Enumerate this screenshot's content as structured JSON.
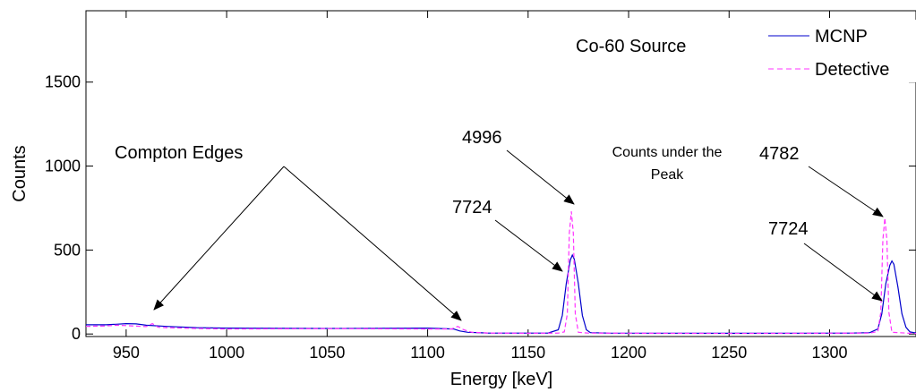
{
  "chart_data": {
    "type": "line",
    "title": "Co-60 Source",
    "xlabel": "Energy [keV]",
    "ylabel": "Counts",
    "xlim": [
      930,
      1343
    ],
    "ylim": [
      -15,
      1925
    ],
    "xticks": [
      950,
      1000,
      1050,
      1100,
      1150,
      1200,
      1250,
      1300
    ],
    "yticks": [
      0,
      500,
      1000,
      1500
    ],
    "grid": false,
    "legend_position": "top-right",
    "series": [
      {
        "name": "MCNP",
        "style": "solid",
        "color": "#0000cc",
        "x": [
          930,
          940,
          945,
          950,
          955,
          960,
          970,
          985,
          1000,
          1050,
          1100,
          1113,
          1116,
          1120,
          1130,
          1150,
          1160,
          1165,
          1167,
          1169,
          1171,
          1172,
          1173,
          1175,
          1177,
          1179,
          1181,
          1190,
          1250,
          1310,
          1320,
          1324,
          1326,
          1328,
          1330,
          1331,
          1332,
          1334,
          1336,
          1338,
          1340,
          1343
        ],
        "y": [
          55,
          55,
          58,
          62,
          60,
          52,
          45,
          38,
          35,
          33,
          35,
          30,
          18,
          10,
          6,
          5,
          6,
          25,
          110,
          300,
          440,
          470,
          445,
          300,
          110,
          25,
          8,
          5,
          4,
          5,
          8,
          30,
          120,
          300,
          410,
          435,
          415,
          280,
          120,
          40,
          12,
          6
        ]
      },
      {
        "name": "Detective",
        "style": "dashed",
        "color": "#ff33ff",
        "x": [
          930,
          940,
          945,
          950,
          955,
          960,
          963,
          966,
          970,
          985,
          1000,
          1050,
          1100,
          1112,
          1115,
          1118,
          1122,
          1130,
          1150,
          1165,
          1168,
          1169.5,
          1170.5,
          1171.5,
          1172.5,
          1173.5,
          1175,
          1180,
          1250,
          1320,
          1324,
          1325.5,
          1326.5,
          1327.5,
          1328.5,
          1329.5,
          1331,
          1340,
          1343
        ],
        "y": [
          45,
          48,
          52,
          50,
          47,
          44,
          62,
          40,
          38,
          33,
          30,
          32,
          30,
          30,
          45,
          25,
          10,
          6,
          4,
          5,
          12,
          120,
          600,
          730,
          600,
          120,
          10,
          5,
          3,
          5,
          15,
          130,
          560,
          690,
          560,
          130,
          10,
          4,
          3
        ]
      }
    ],
    "annotations": {
      "compton": "Compton Edges",
      "counts_under_peak_line1": "Counts under the",
      "counts_under_peak_line2": "Peak",
      "det_peak1": "4996",
      "mcnp_peak1": "7724",
      "det_peak2": "4782",
      "mcnp_peak2": "7724"
    }
  }
}
